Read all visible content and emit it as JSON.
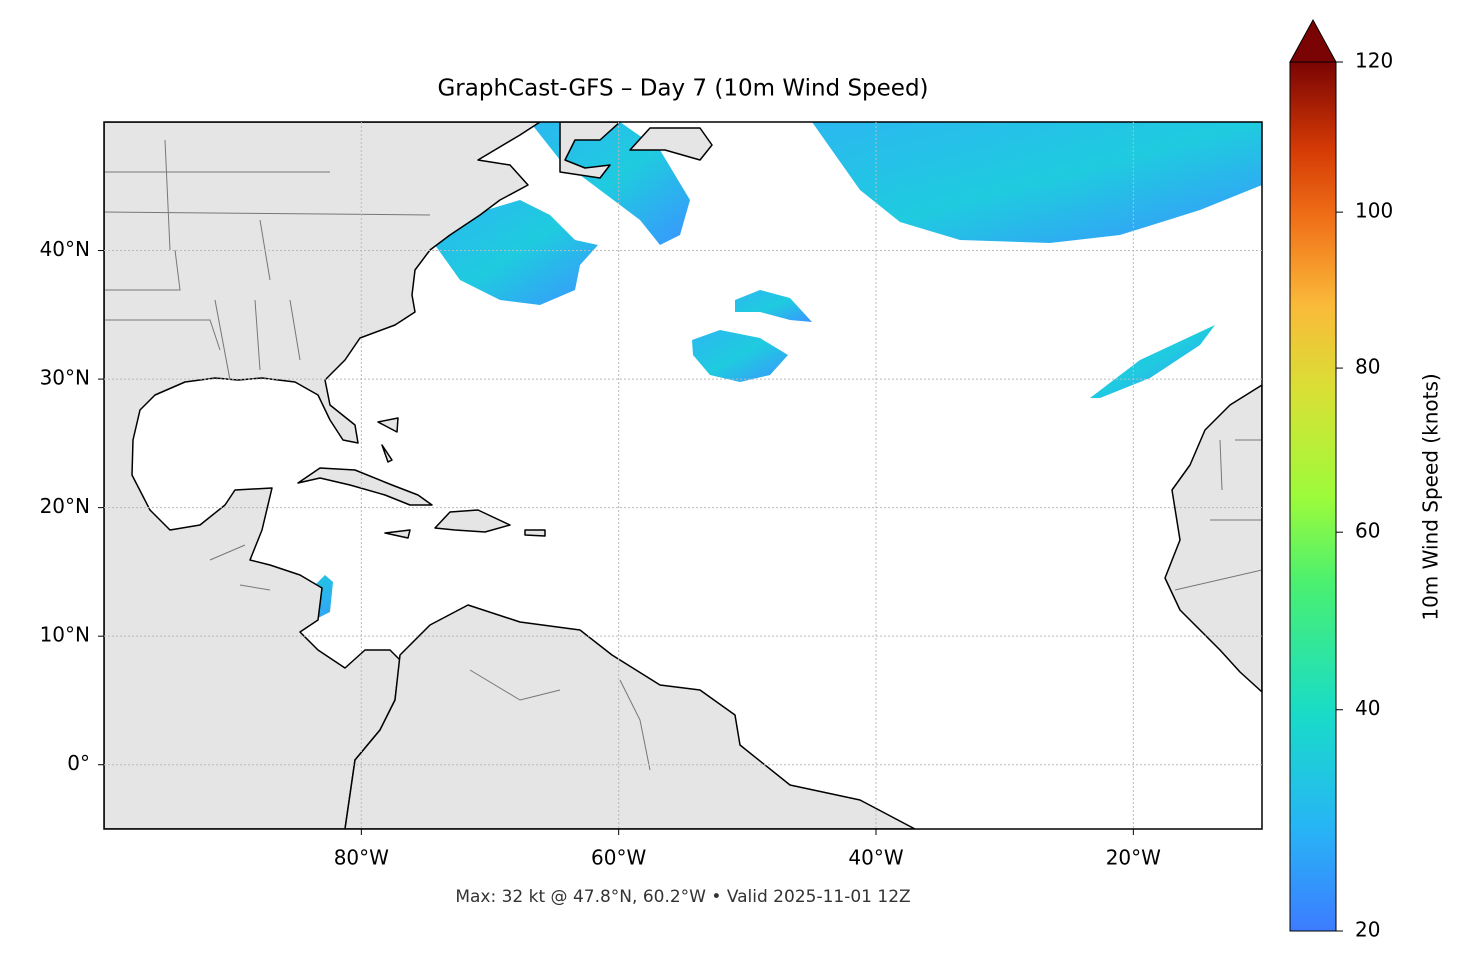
{
  "chart_data": {
    "type": "map",
    "title": "GraphCast-GFS – Day 7 (10m Wind Speed)",
    "footer": "Max: 32 kt @ 47.8°N, 60.2°W • Valid 2025-11-01 12Z",
    "xlim": [
      -100,
      -10
    ],
    "ylim": [
      -5,
      50
    ],
    "xticks": [
      {
        "value": -80,
        "label": "80°W"
      },
      {
        "value": -60,
        "label": "60°W"
      },
      {
        "value": -40,
        "label": "40°W"
      },
      {
        "value": -20,
        "label": "20°W"
      }
    ],
    "yticks": [
      {
        "value": 0,
        "label": "0°"
      },
      {
        "value": 10,
        "label": "10°N"
      },
      {
        "value": 20,
        "label": "20°N"
      },
      {
        "value": 30,
        "label": "30°N"
      },
      {
        "value": 40,
        "label": "40°N"
      }
    ],
    "grid": true,
    "colorbar": {
      "label": "10m Wind Speed (knots)",
      "lim": [
        20,
        120
      ],
      "ticks": [
        20,
        40,
        60,
        80,
        100,
        120
      ],
      "gamma": 0.85
    }
  }
}
